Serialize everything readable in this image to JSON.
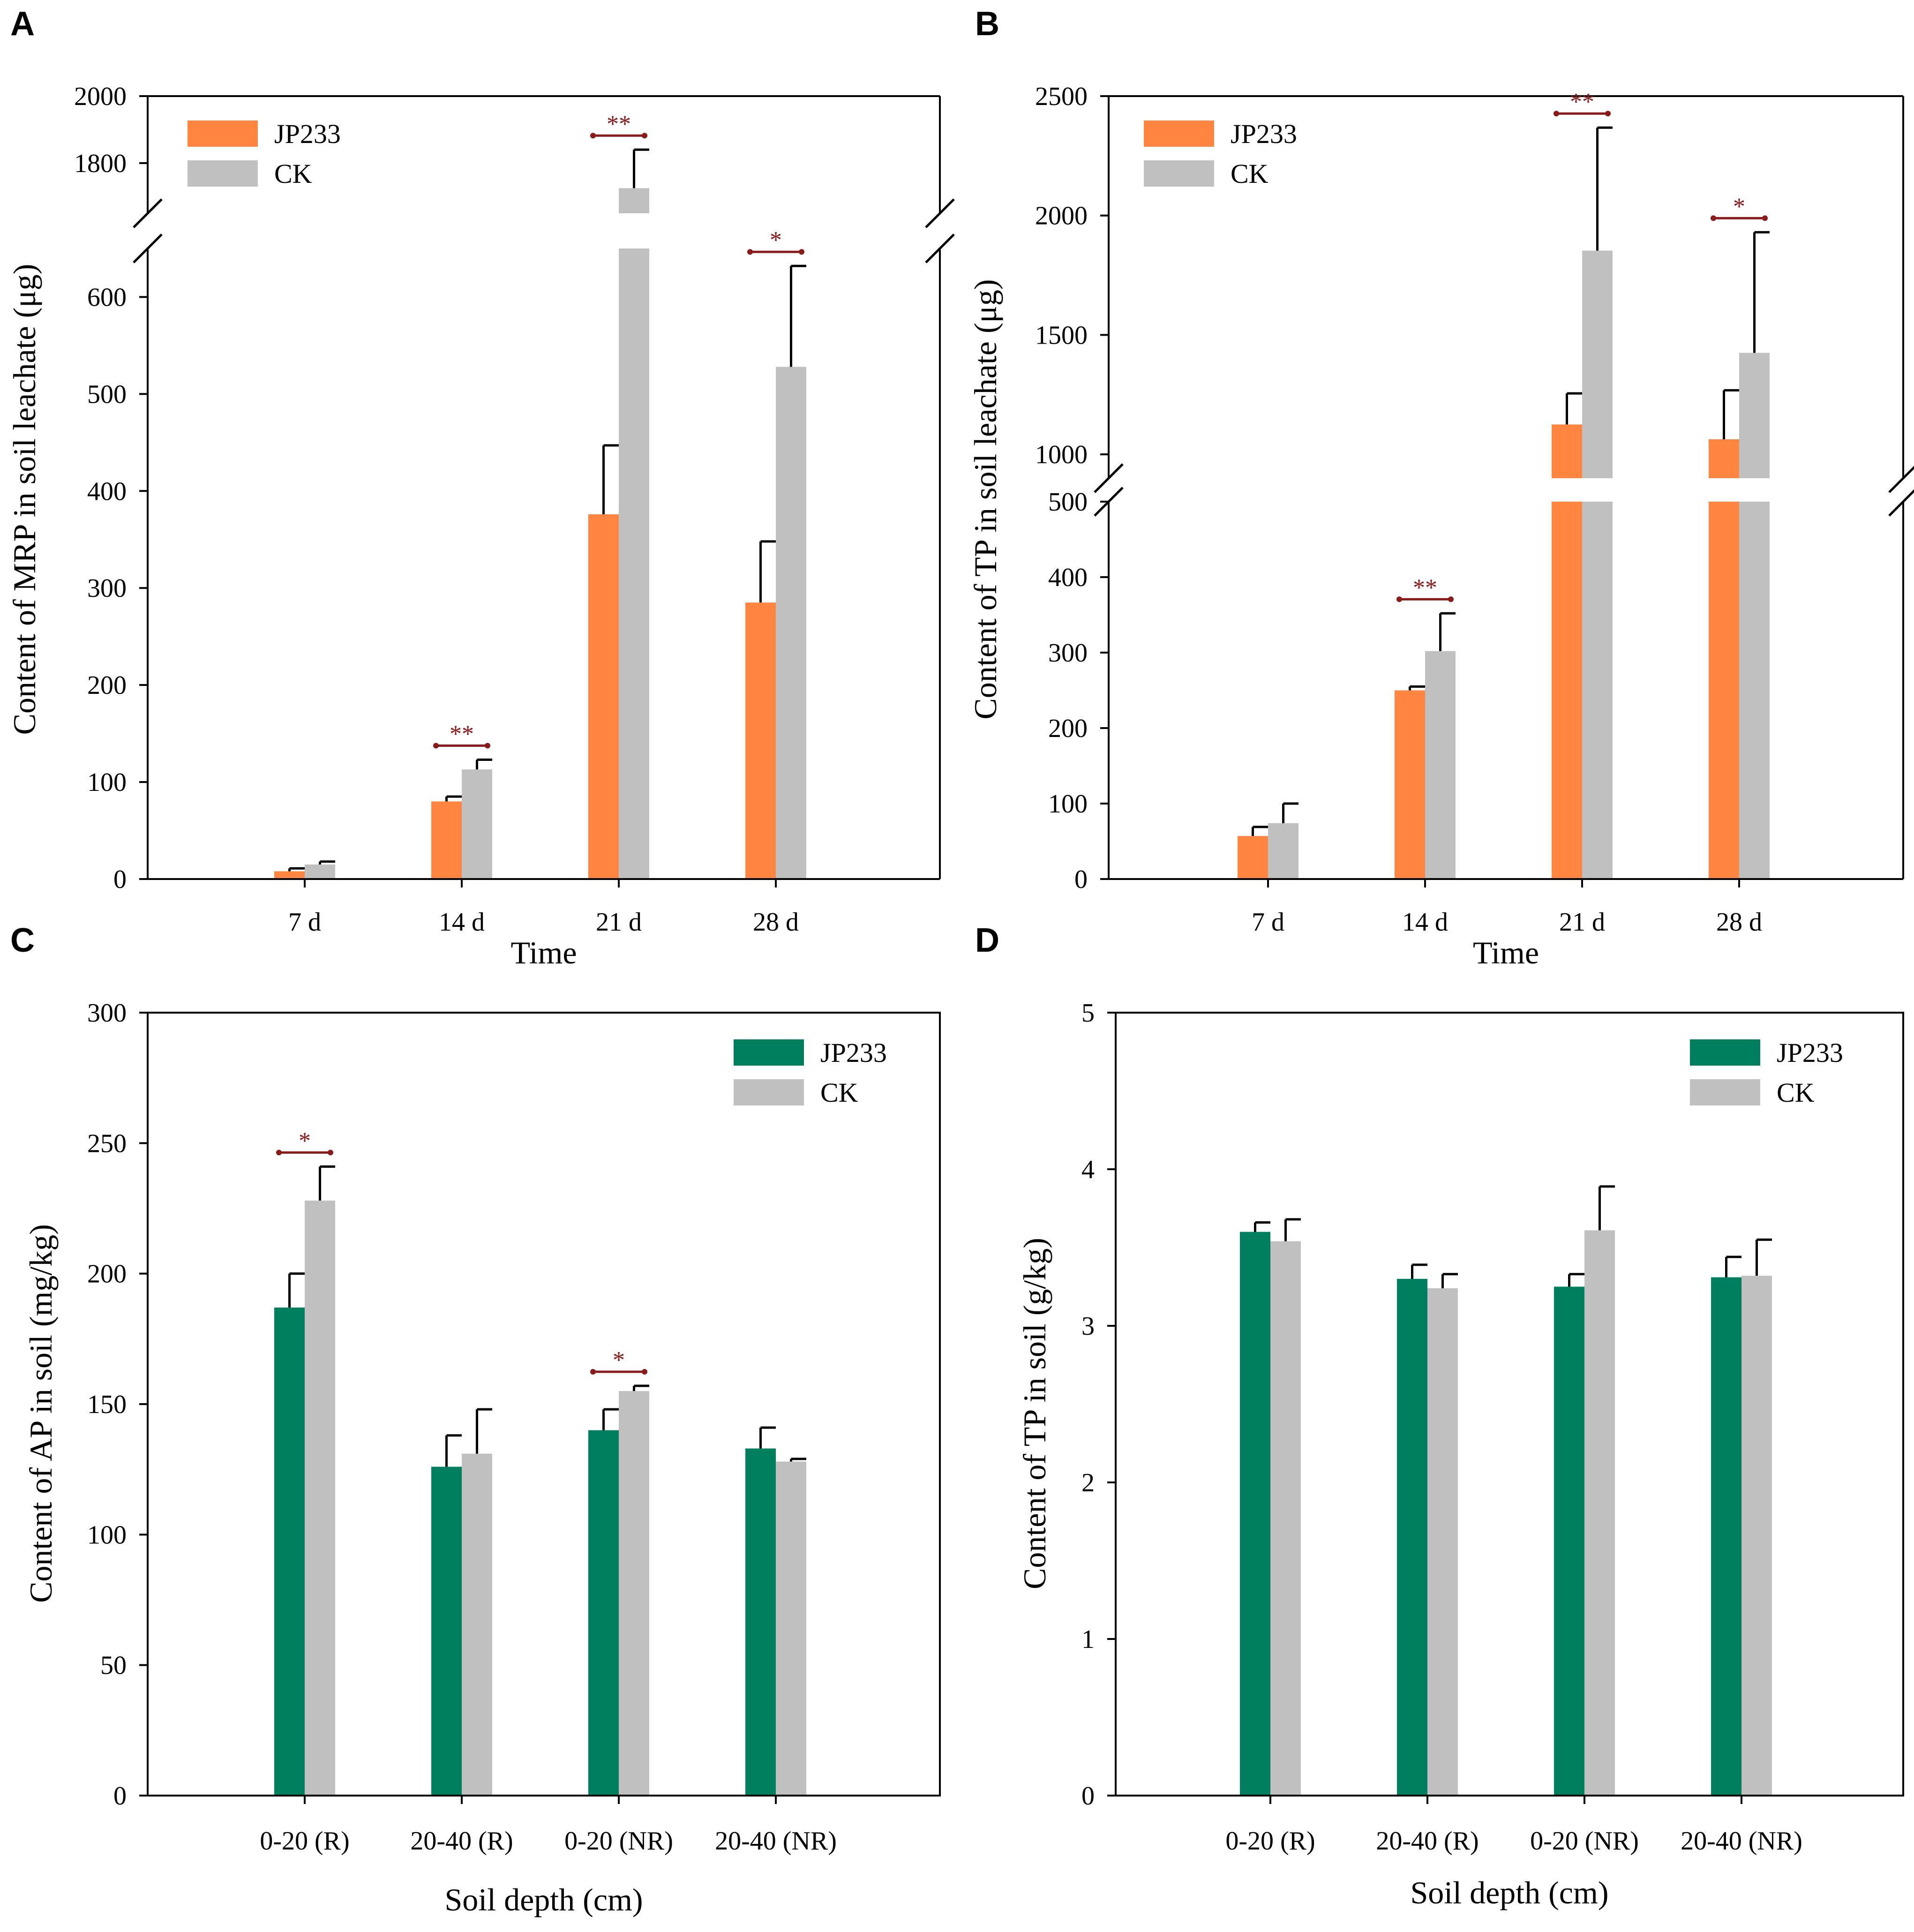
{
  "colors": {
    "jp233_orange": "#FF8541",
    "jp233_green": "#007F5F",
    "ck_gray": "#C0C0C0",
    "significance": "#8B1A1A"
  },
  "chart_data": [
    {
      "panel": "A",
      "type": "bar",
      "categories": [
        "7 d",
        "14 d",
        "21 d",
        "28 d"
      ],
      "series": [
        {
          "name": "JP233",
          "values": [
            8,
            80,
            376,
            285
          ],
          "errors": [
            3,
            5,
            71,
            63
          ],
          "color": "#FF8541"
        },
        {
          "name": "CK",
          "values": [
            15,
            113,
            1725,
            528
          ],
          "errors": [
            3,
            10,
            115,
            104
          ],
          "color": "#C0C0C0"
        }
      ],
      "ylabel": "Content of MRP in soil leachate (μg)",
      "xlabel": "Time",
      "ylim": [
        0,
        2000
      ],
      "broken_axis": {
        "lower": [
          0,
          650
        ],
        "upper": [
          1650,
          2000
        ]
      },
      "lower_ticks": [
        "0",
        "100",
        "200",
        "300",
        "400",
        "500",
        "600"
      ],
      "upper_ticks": [
        "1800",
        "2000"
      ],
      "significance": [
        {
          "category_index": 1,
          "label": "**"
        },
        {
          "category_index": 2,
          "label": "**"
        },
        {
          "category_index": 3,
          "label": "*"
        }
      ],
      "legend": [
        "JP233",
        "CK"
      ]
    },
    {
      "panel": "B",
      "type": "bar",
      "categories": [
        "7 d",
        "14 d",
        "21 d",
        "28 d"
      ],
      "series": [
        {
          "name": "JP233",
          "values": [
            57,
            250,
            1125,
            1063
          ],
          "errors": [
            12,
            5,
            130,
            205
          ],
          "color": "#FF8541"
        },
        {
          "name": "CK",
          "values": [
            74,
            302,
            1853,
            1425
          ],
          "errors": [
            26,
            50,
            515,
            505
          ],
          "color": "#C0C0C0"
        }
      ],
      "ylabel": "Content of TP in soil leachate (μg)",
      "xlabel": "Time",
      "ylim": [
        0,
        2500
      ],
      "broken_axis": {
        "lower": [
          0,
          500
        ],
        "upper": [
          900,
          2500
        ]
      },
      "lower_ticks": [
        "0",
        "100",
        "200",
        "300",
        "400",
        "500"
      ],
      "upper_ticks": [
        "1000",
        "1500",
        "2000",
        "2500"
      ],
      "significance": [
        {
          "category_index": 1,
          "label": "**"
        },
        {
          "category_index": 2,
          "label": "**"
        },
        {
          "category_index": 3,
          "label": "*"
        }
      ],
      "legend": [
        "JP233",
        "CK"
      ]
    },
    {
      "panel": "C",
      "type": "bar",
      "categories": [
        "0-20 (R)",
        "20-40 (R)",
        "0-20 (NR)",
        "20-40 (NR)"
      ],
      "series": [
        {
          "name": "JP233",
          "values": [
            187,
            126,
            140,
            133
          ],
          "errors": [
            13,
            12,
            8,
            8
          ],
          "color": "#007F5F"
        },
        {
          "name": "CK",
          "values": [
            228,
            131,
            155,
            128
          ],
          "errors": [
            13,
            17,
            2,
            1
          ],
          "color": "#C0C0C0"
        }
      ],
      "ylabel": "Content of AP in soil (mg/kg)",
      "xlabel": "Soil depth (cm)",
      "ylim": [
        0,
        300
      ],
      "ticks": [
        "0",
        "50",
        "100",
        "150",
        "200",
        "250",
        "300"
      ],
      "significance": [
        {
          "category_index": 0,
          "label": "*"
        },
        {
          "category_index": 2,
          "label": "*"
        }
      ],
      "legend": [
        "JP233",
        "CK"
      ]
    },
    {
      "panel": "D",
      "type": "bar",
      "categories": [
        "0-20 (R)",
        "20-40 (R)",
        "0-20 (NR)",
        "20-40 (NR)"
      ],
      "series": [
        {
          "name": "JP233",
          "values": [
            3.6,
            3.3,
            3.25,
            3.31
          ],
          "errors": [
            0.06,
            0.09,
            0.08,
            0.13
          ],
          "color": "#007F5F"
        },
        {
          "name": "CK",
          "values": [
            3.54,
            3.24,
            3.61,
            3.32
          ],
          "errors": [
            0.14,
            0.09,
            0.28,
            0.23
          ],
          "color": "#C0C0C0"
        }
      ],
      "ylabel": "Content of TP in soil (g/kg)",
      "xlabel": "Soil depth (cm)",
      "ylim": [
        0,
        5
      ],
      "ticks": [
        "0",
        "1",
        "2",
        "3",
        "4",
        "5"
      ],
      "significance": [],
      "legend": [
        "JP233",
        "CK"
      ]
    }
  ]
}
